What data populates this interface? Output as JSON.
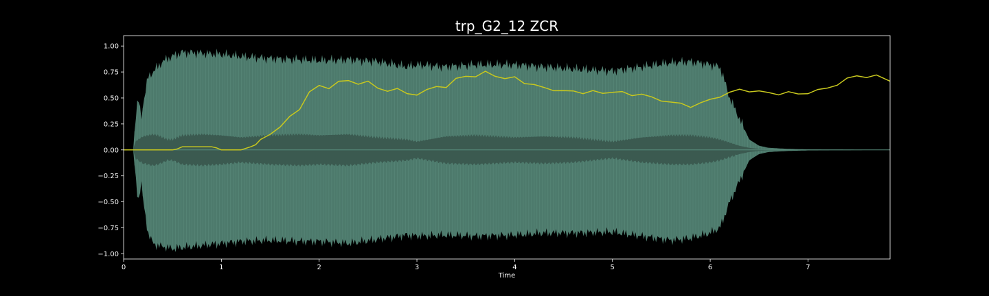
{
  "chart_data": {
    "type": "line",
    "title": "trp_G2_12 ZCR",
    "xlabel": "Time",
    "ylabel": "",
    "xlim": [
      0,
      7.84
    ],
    "ylim": [
      -1.05,
      1.1
    ],
    "grid": false,
    "x_ticks": [
      "0",
      "1",
      "2",
      "3",
      "4",
      "5",
      "6",
      "7"
    ],
    "y_ticks": [
      "1.00",
      "0.75",
      "0.50",
      "0.25",
      "0.00",
      "−0.25",
      "−0.50",
      "−0.75",
      "−1.00"
    ],
    "colors": {
      "background": "#000000",
      "axes": "#ffffff",
      "waveform_outer": "#5b8f7f",
      "waveform_inner": "#3b5a50",
      "zcr_line": "#c8c81e"
    },
    "waveform_envelope": {
      "t": [
        0.0,
        0.1,
        0.12,
        0.15,
        0.18,
        0.2,
        0.25,
        0.3,
        0.35,
        0.4,
        0.45,
        0.5,
        0.6,
        0.8,
        1.0,
        1.2,
        1.5,
        1.8,
        2.0,
        2.3,
        2.6,
        2.9,
        3.0,
        3.3,
        3.6,
        4.0,
        4.3,
        4.6,
        5.0,
        5.3,
        5.6,
        5.8,
        6.0,
        6.1,
        6.2,
        6.3,
        6.4,
        6.5,
        6.6,
        6.8,
        7.0,
        7.84
      ],
      "upper": [
        0.0,
        0.0,
        0.3,
        0.5,
        0.3,
        0.45,
        0.7,
        0.75,
        0.8,
        0.85,
        0.88,
        0.9,
        0.94,
        0.93,
        0.92,
        0.9,
        0.88,
        0.87,
        0.86,
        0.87,
        0.85,
        0.8,
        0.82,
        0.8,
        0.82,
        0.82,
        0.8,
        0.78,
        0.76,
        0.8,
        0.84,
        0.85,
        0.82,
        0.8,
        0.5,
        0.3,
        0.1,
        0.04,
        0.02,
        0.01,
        0.005,
        0.0
      ],
      "lower": [
        0.0,
        0.0,
        -0.25,
        -0.5,
        -0.3,
        -0.5,
        -0.8,
        -0.9,
        -0.92,
        -0.93,
        -0.94,
        -0.95,
        -0.94,
        -0.92,
        -0.9,
        -0.88,
        -0.87,
        -0.88,
        -0.88,
        -0.9,
        -0.86,
        -0.82,
        -0.83,
        -0.82,
        -0.83,
        -0.82,
        -0.8,
        -0.8,
        -0.79,
        -0.83,
        -0.87,
        -0.85,
        -0.8,
        -0.75,
        -0.5,
        -0.3,
        -0.1,
        -0.04,
        -0.02,
        -0.01,
        -0.005,
        0.0
      ],
      "inner": [
        0.0,
        0.0,
        0.08,
        0.1,
        0.12,
        0.13,
        0.14,
        0.15,
        0.14,
        0.12,
        0.1,
        0.1,
        0.14,
        0.15,
        0.14,
        0.12,
        0.14,
        0.15,
        0.14,
        0.15,
        0.12,
        0.1,
        0.08,
        0.13,
        0.14,
        0.12,
        0.13,
        0.12,
        0.08,
        0.12,
        0.14,
        0.14,
        0.12,
        0.1,
        0.07,
        0.04,
        0.02,
        0.01,
        0.005,
        0.002,
        0.001,
        0.0
      ]
    },
    "series": [
      {
        "x": [
          0.0,
          0.1,
          0.2,
          0.3,
          0.4,
          0.5,
          0.55,
          0.6,
          0.7,
          0.8,
          0.9,
          0.95,
          1.0,
          1.1,
          1.2,
          1.3,
          1.35,
          1.4,
          1.5,
          1.6,
          1.7,
          1.8,
          1.9,
          2.0,
          2.1,
          2.2,
          2.3,
          2.4,
          2.5,
          2.6,
          2.7,
          2.8,
          2.9,
          3.0,
          3.1,
          3.2,
          3.3,
          3.4,
          3.5,
          3.6,
          3.7,
          3.8,
          3.9,
          4.0,
          4.1,
          4.2,
          4.3,
          4.4,
          4.5,
          4.6,
          4.7,
          4.8,
          4.9,
          5.0,
          5.1,
          5.2,
          5.3,
          5.4,
          5.5,
          5.6,
          5.7,
          5.8,
          5.9,
          6.0,
          6.1,
          6.2,
          6.3,
          6.4,
          6.5,
          6.6,
          6.7,
          6.8,
          6.9,
          7.0,
          7.1,
          7.2,
          7.3,
          7.4,
          7.5,
          7.6,
          7.7,
          7.84
        ],
        "values": [
          0.0,
          0.0,
          0.0,
          0.0,
          0.0,
          0.0,
          0.01,
          0.03,
          0.03,
          0.03,
          0.03,
          0.02,
          0.0,
          0.0,
          0.0,
          0.03,
          0.05,
          0.1,
          0.15,
          0.22,
          0.32,
          0.4,
          0.55,
          0.62,
          0.6,
          0.65,
          0.67,
          0.64,
          0.65,
          0.6,
          0.57,
          0.58,
          0.55,
          0.53,
          0.57,
          0.62,
          0.6,
          0.68,
          0.72,
          0.7,
          0.75,
          0.72,
          0.68,
          0.7,
          0.65,
          0.62,
          0.6,
          0.58,
          0.56,
          0.57,
          0.55,
          0.56,
          0.55,
          0.56,
          0.55,
          0.53,
          0.54,
          0.5,
          0.48,
          0.46,
          0.44,
          0.42,
          0.45,
          0.48,
          0.52,
          0.55,
          0.58,
          0.57,
          0.56,
          0.55,
          0.54,
          0.55,
          0.54,
          0.55,
          0.57,
          0.6,
          0.63,
          0.68,
          0.72,
          0.7,
          0.71,
          0.67
        ]
      }
    ]
  }
}
